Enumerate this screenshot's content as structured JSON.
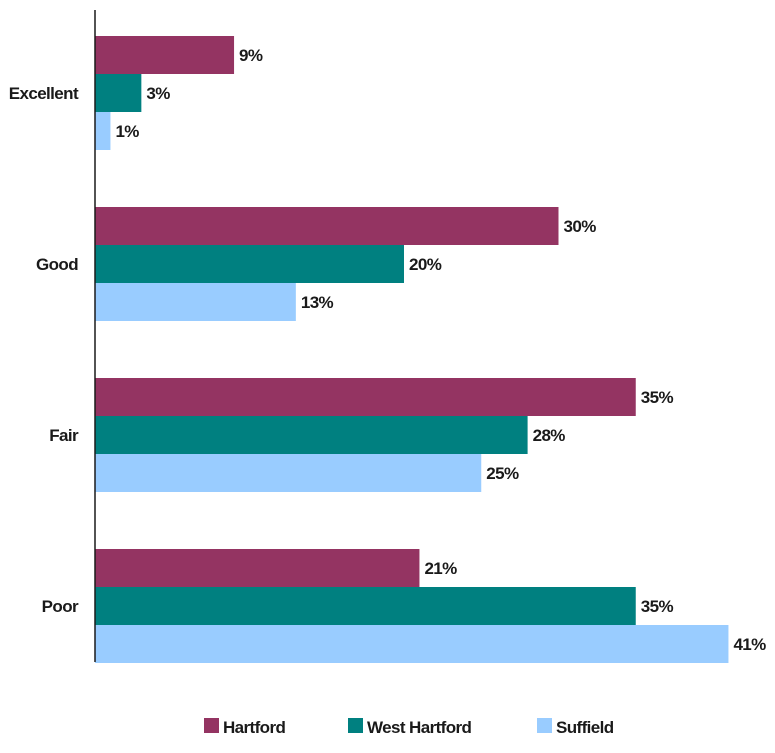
{
  "chart_data": {
    "type": "bar",
    "orientation": "horizontal",
    "categories": [
      "Excellent",
      "Good",
      "Fair",
      "Poor"
    ],
    "series": [
      {
        "name": "Hartford",
        "color": "#943462",
        "values": [
          9,
          30,
          35,
          21
        ],
        "labels": [
          "9%",
          "30%",
          "35%",
          "21%"
        ]
      },
      {
        "name": "West Hartford",
        "color": "#008080",
        "values": [
          3,
          20,
          28,
          35
        ],
        "labels": [
          "3%",
          "20%",
          "28%",
          "35%"
        ]
      },
      {
        "name": "Suffield",
        "color": "#99CCFF",
        "values": [
          1,
          13,
          25,
          41
        ],
        "labels": [
          "1%",
          "13%",
          "25%",
          "41%"
        ]
      }
    ],
    "xlim": [
      0,
      42
    ],
    "grid": false,
    "legend_position": "bottom"
  }
}
